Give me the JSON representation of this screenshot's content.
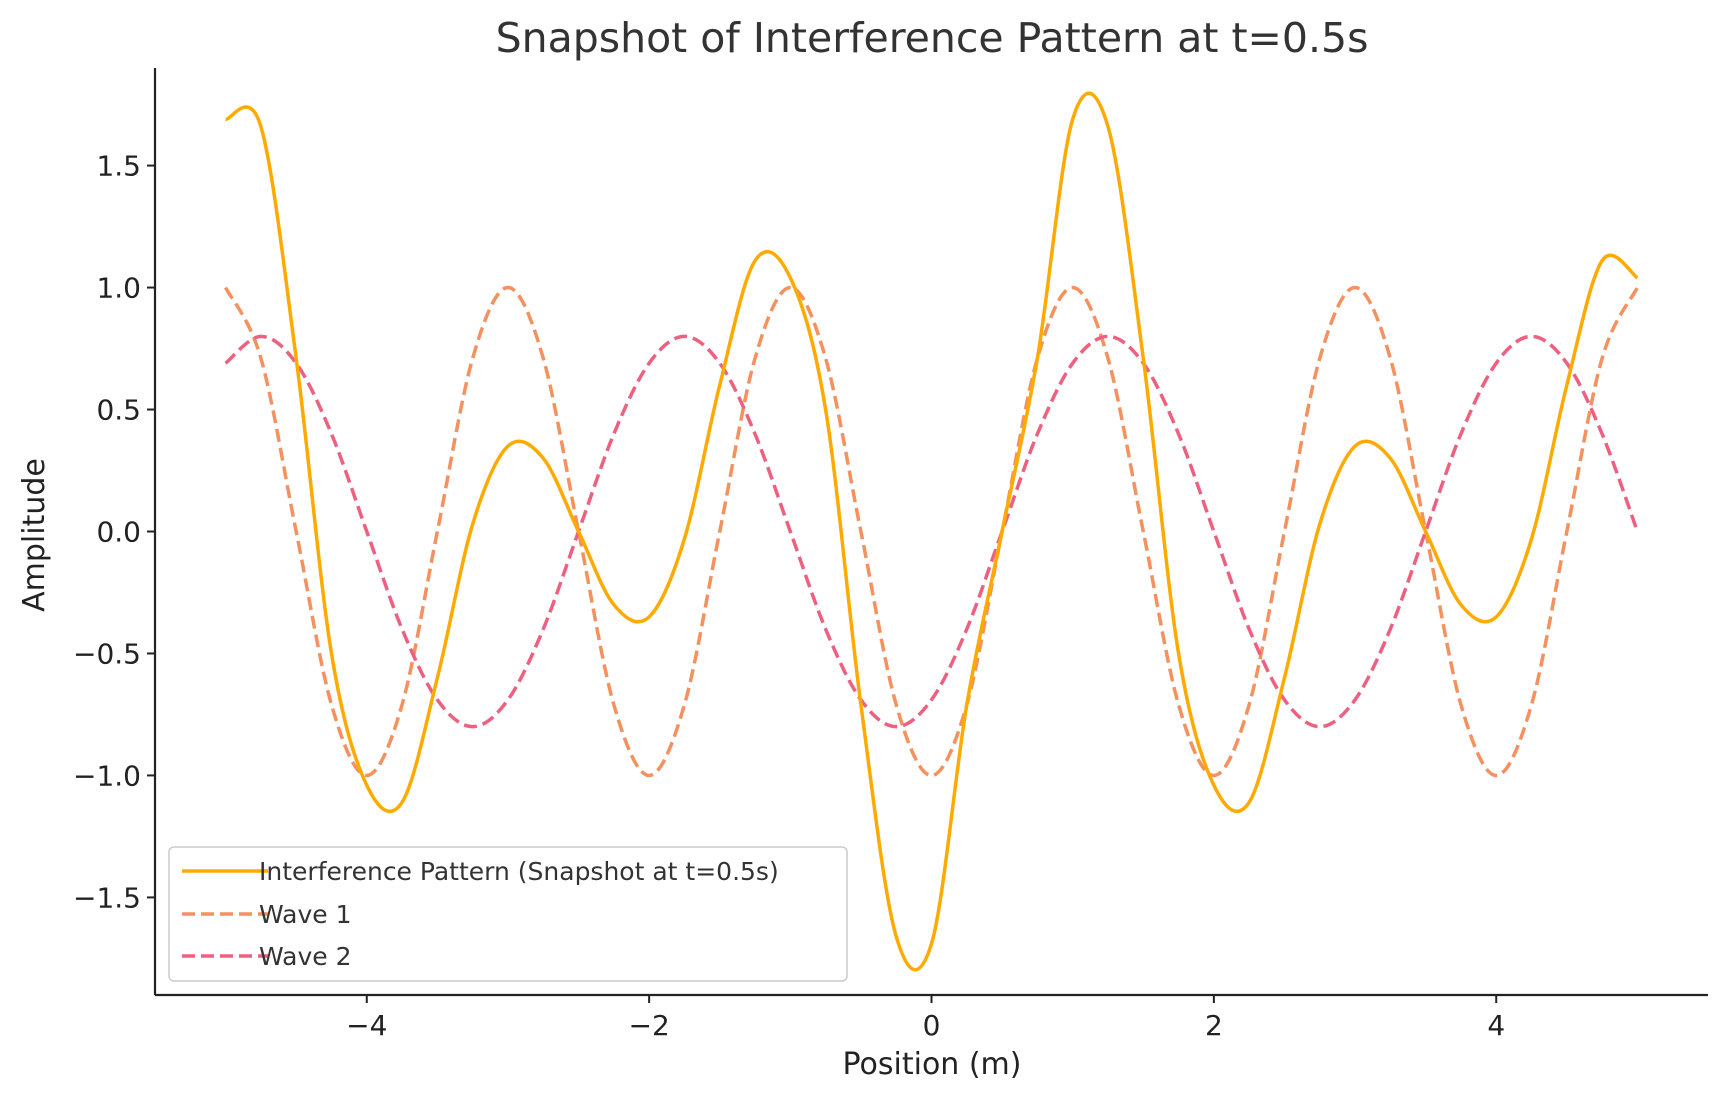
{
  "chart_data": {
    "type": "line",
    "title": "Snapshot of Interference Pattern at t=0.5s",
    "xlabel": "Position (m)",
    "ylabel": "Amplitude",
    "xlim": [
      -5.5,
      5.5
    ],
    "ylim": [
      -1.9,
      1.9
    ],
    "xticks": [
      -4,
      -2,
      0,
      2,
      4
    ],
    "xtick_labels": [
      "−4",
      "−2",
      "0",
      "2",
      "4"
    ],
    "yticks": [
      -1.5,
      -1.0,
      -0.5,
      0.0,
      0.5,
      1.0,
      1.5
    ],
    "ytick_labels": [
      "−1.5",
      "−1.0",
      "−0.5",
      "0.0",
      "0.5",
      "1.0",
      "1.5"
    ],
    "grid": false,
    "legend_position": "lower-left",
    "x_range": [
      -5,
      5
    ],
    "series": [
      {
        "name": "Interference Pattern (Snapshot at t=0.5s)",
        "style": "solid",
        "color": "#FFAA00",
        "x": [
          -5,
          -4.75,
          -4.5,
          -4.25,
          -4,
          -3.75,
          -3.5,
          -3.25,
          -3,
          -2.75,
          -2.5,
          -2.25,
          -2,
          -1.75,
          -1.5,
          -1.25,
          -1,
          -0.75,
          -0.5,
          -0.25,
          0,
          0.25,
          0.5,
          0.75,
          1,
          1.25,
          1.5,
          1.75,
          2,
          2.25,
          2.5,
          2.75,
          3,
          3.25,
          3.5,
          3.75,
          4,
          4.25,
          4.5,
          4.75,
          5
        ],
        "y": [
          1.69,
          1.66,
          0.71,
          -0.5,
          -1.04,
          -1.11,
          -0.6,
          0.03,
          0.35,
          0.3,
          0.0,
          -0.3,
          -0.35,
          -0.03,
          0.6,
          1.11,
          1.04,
          0.5,
          -0.71,
          -1.66,
          -1.69,
          -0.71,
          0.0,
          0.71,
          1.69,
          1.66,
          0.71,
          -0.5,
          -1.04,
          -1.11,
          -0.6,
          0.03,
          0.35,
          0.3,
          0.0,
          -0.3,
          -0.35,
          -0.03,
          0.6,
          1.11,
          1.04
        ]
      },
      {
        "name": "Wave 1",
        "style": "dashed",
        "color": "#F4915E",
        "x": [
          -5,
          -4.75,
          -4.5,
          -4.25,
          -4,
          -3.75,
          -3.5,
          -3.25,
          -3,
          -2.75,
          -2.5,
          -2.25,
          -2,
          -1.75,
          -1.5,
          -1.25,
          -1,
          -0.75,
          -0.5,
          -0.25,
          0,
          0.25,
          0.5,
          0.75,
          1,
          1.25,
          1.5,
          1.75,
          2,
          2.25,
          2.5,
          2.75,
          3,
          3.25,
          3.5,
          3.75,
          4,
          4.25,
          4.5,
          4.75,
          5
        ],
        "y": [
          1.0,
          0.71,
          0.0,
          -0.71,
          -1.0,
          -0.71,
          0.0,
          0.71,
          1.0,
          0.71,
          0.0,
          -0.71,
          -1.0,
          -0.71,
          0.0,
          0.71,
          1.0,
          0.71,
          0.0,
          -0.71,
          -1.0,
          -0.71,
          0.0,
          0.71,
          1.0,
          0.71,
          0.0,
          -0.71,
          -1.0,
          -0.71,
          0.0,
          0.71,
          1.0,
          0.71,
          0.0,
          -0.71,
          -1.0,
          -0.71,
          0.0,
          0.71,
          1.0
        ]
      },
      {
        "name": "Wave 2",
        "style": "dashed",
        "color": "#EE6080",
        "x": [
          -5,
          -4.75,
          -4.5,
          -4.25,
          -4,
          -3.75,
          -3.5,
          -3.25,
          -3,
          -2.75,
          -2.5,
          -2.25,
          -2,
          -1.75,
          -1.5,
          -1.25,
          -1,
          -0.75,
          -0.5,
          -0.25,
          0,
          0.25,
          0.5,
          0.75,
          1,
          1.25,
          1.5,
          1.75,
          2,
          2.25,
          2.5,
          2.75,
          3,
          3.25,
          3.5,
          3.75,
          4,
          4.25,
          4.5,
          4.75,
          5
        ],
        "y": [
          0.69,
          0.8,
          0.69,
          0.4,
          0.0,
          -0.4,
          -0.69,
          -0.8,
          -0.69,
          -0.4,
          0.0,
          0.4,
          0.69,
          0.8,
          0.69,
          0.4,
          0.0,
          -0.4,
          -0.69,
          -0.8,
          -0.69,
          -0.4,
          0.0,
          0.4,
          0.69,
          0.8,
          0.69,
          0.4,
          0.0,
          -0.4,
          -0.69,
          -0.8,
          -0.69,
          -0.4,
          0.0,
          0.4,
          0.69,
          0.8,
          0.69,
          0.4,
          0.0
        ]
      }
    ]
  }
}
